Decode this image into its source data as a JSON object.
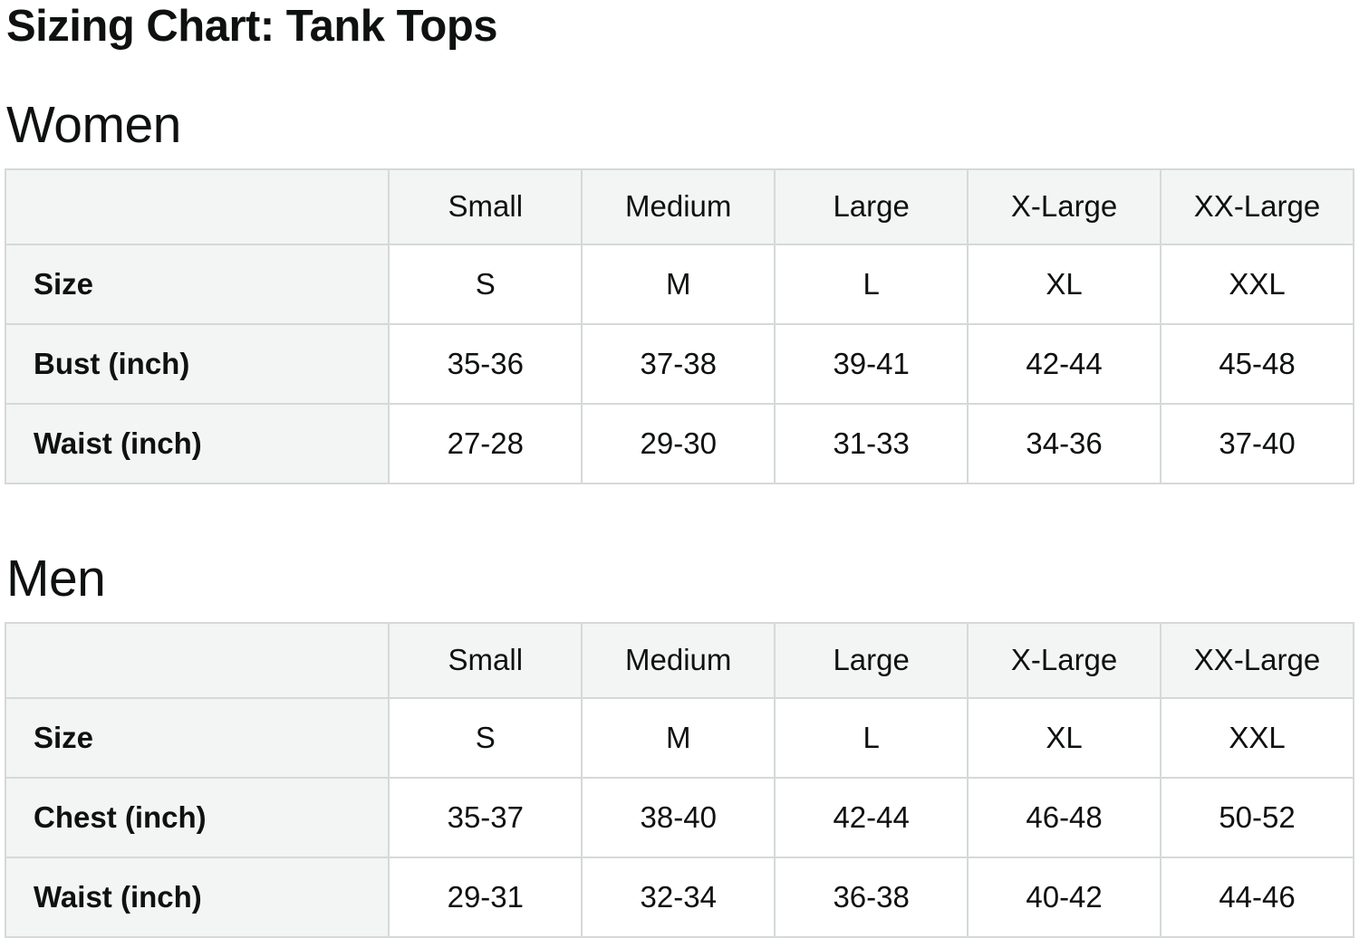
{
  "page": {
    "title": "Sizing Chart: Tank Tops"
  },
  "colors": {
    "text": "#0f1111",
    "border": "#d5d9d9",
    "header_cell_bg": "#f3f4f4",
    "data_cell_bg": "#ffffff",
    "page_bg": "#ffffff"
  },
  "tables": [
    {
      "heading": "Women",
      "column_headers": [
        "",
        "Small",
        "Medium",
        "Large",
        "X-Large",
        "XX-Large"
      ],
      "rows": [
        {
          "label": "Size",
          "values": [
            "S",
            "M",
            "L",
            "XL",
            "XXL"
          ]
        },
        {
          "label": "Bust (inch)",
          "values": [
            "35-36",
            "37-38",
            "39-41",
            "42-44",
            "45-48"
          ]
        },
        {
          "label": "Waist (inch)",
          "values": [
            "27-28",
            "29-30",
            "31-33",
            "34-36",
            "37-40"
          ]
        }
      ]
    },
    {
      "heading": "Men",
      "column_headers": [
        "",
        "Small",
        "Medium",
        "Large",
        "X-Large",
        "XX-Large"
      ],
      "rows": [
        {
          "label": "Size",
          "values": [
            "S",
            "M",
            "L",
            "XL",
            "XXL"
          ]
        },
        {
          "label": "Chest (inch)",
          "values": [
            "35-37",
            "38-40",
            "42-44",
            "46-48",
            "50-52"
          ]
        },
        {
          "label": "Waist (inch)",
          "values": [
            "29-31",
            "32-34",
            "36-38",
            "40-42",
            "44-46"
          ]
        }
      ]
    }
  ]
}
